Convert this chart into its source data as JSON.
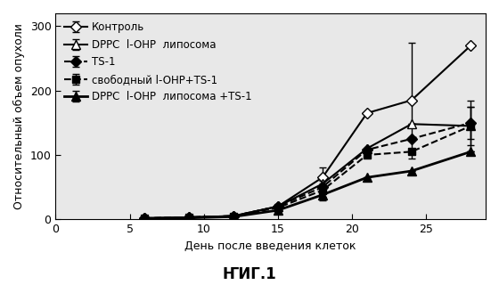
{
  "title": "ҤИГ.1",
  "xlabel": "День после введения клеток",
  "ylabel": "Относительный объем опухоли",
  "xlim": [
    0,
    29
  ],
  "ylim": [
    0,
    320
  ],
  "yticks": [
    0,
    100,
    200,
    300
  ],
  "xticks": [
    0,
    5,
    10,
    15,
    20,
    25
  ],
  "series": [
    {
      "label": "Контроль",
      "x": [
        6,
        9,
        12,
        15,
        18,
        21,
        24,
        28
      ],
      "y": [
        1.5,
        3,
        5,
        20,
        65,
        165,
        185,
        270
      ],
      "yerr": [
        0,
        0,
        0,
        3,
        15,
        0,
        90,
        0
      ],
      "color": "black",
      "linestyle": "-",
      "marker": "D",
      "markersize": 6,
      "markerfacecolor": "white",
      "linewidth": 1.5,
      "zorder": 3
    },
    {
      "label": "DPPC  l-OHP  липосома",
      "x": [
        6,
        9,
        12,
        15,
        18,
        21,
        24,
        28
      ],
      "y": [
        1.5,
        3,
        5,
        20,
        55,
        110,
        148,
        145
      ],
      "yerr": [
        0,
        0,
        0,
        3,
        10,
        0,
        0,
        40
      ],
      "color": "black",
      "linestyle": "-",
      "marker": "^",
      "markersize": 7,
      "markerfacecolor": "white",
      "linewidth": 1.5,
      "zorder": 3
    },
    {
      "label": "TS-1",
      "x": [
        6,
        9,
        12,
        15,
        18,
        21,
        24,
        28
      ],
      "y": [
        1.5,
        3,
        5,
        20,
        50,
        108,
        125,
        150
      ],
      "yerr": [
        0,
        0,
        0,
        3,
        10,
        0,
        0,
        25
      ],
      "color": "black",
      "linestyle": "--",
      "marker": "D",
      "markersize": 6,
      "markerfacecolor": "black",
      "linewidth": 1.5,
      "zorder": 3
    },
    {
      "label": "свободный l-OHP+TS-1",
      "x": [
        6,
        9,
        12,
        15,
        18,
        21,
        24,
        28
      ],
      "y": [
        1.5,
        3,
        5,
        18,
        45,
        100,
        105,
        145
      ],
      "yerr": [
        0,
        0,
        0,
        2,
        10,
        0,
        0,
        30
      ],
      "color": "black",
      "linestyle": "--",
      "marker": "s",
      "markersize": 6,
      "markerfacecolor": "black",
      "linewidth": 1.5,
      "zorder": 3
    },
    {
      "label": "DPPC  l-OHP  липосома +TS-1",
      "x": [
        6,
        9,
        12,
        15,
        18,
        21,
        24,
        28
      ],
      "y": [
        1.5,
        2,
        4,
        14,
        38,
        65,
        75,
        105
      ],
      "yerr": [
        0,
        0,
        0,
        2,
        8,
        0,
        0,
        0
      ],
      "color": "black",
      "linestyle": "-",
      "marker": "^",
      "markersize": 7,
      "markerfacecolor": "black",
      "linewidth": 2.0,
      "zorder": 4
    }
  ],
  "legend_fontsize": 8.5,
  "axis_fontsize": 9,
  "tick_fontsize": 9,
  "title_fontsize": 12
}
